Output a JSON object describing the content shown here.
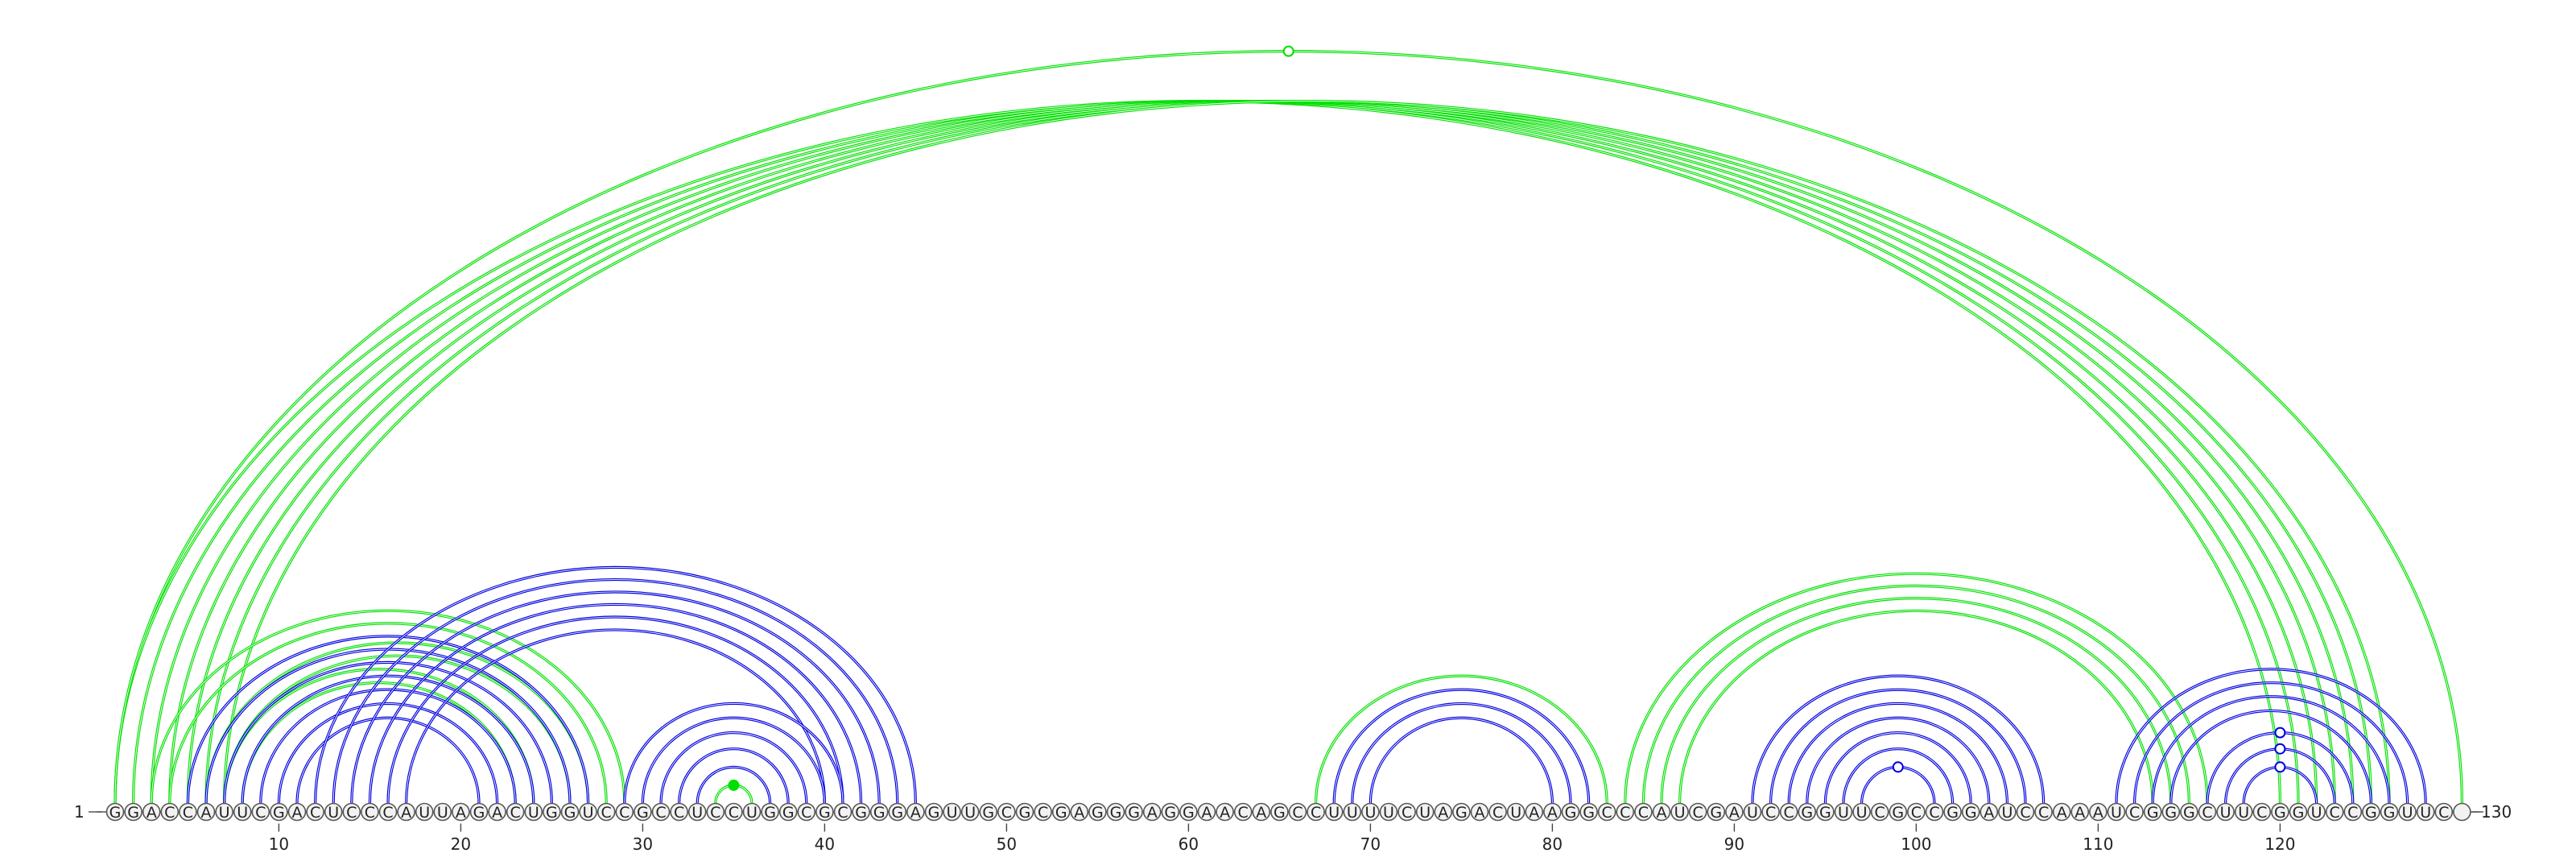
{
  "sequence": "GGACCAUUCGACUCCCAUUAGACUGGUCCGCCUCCUGGCGCGGGAGUUGCGCGAGGGAGGAACAGCCUUUUCUAGACUAAGGCCCAUCGAUCCGGUUCGCCGGAUCCAAAUCGGGCUUCGGUCCGGUUC",
  "start_label": "1",
  "end_label": "130",
  "ticks": [
    "10",
    "20",
    "30",
    "40",
    "50",
    "60",
    "70",
    "80",
    "90",
    "100",
    "110",
    "120"
  ],
  "colors": {
    "structure_a": "#00e000",
    "structure_b": "#0000dd",
    "backbone": "#555555"
  },
  "chart_data": {
    "type": "arc-diagram",
    "length": 130,
    "series": [
      {
        "color": "green",
        "pairs": [
          [
            1,
            120
          ],
          [
            2,
            121
          ],
          [
            3,
            122
          ],
          [
            4,
            123
          ],
          [
            5,
            124
          ],
          [
            6,
            125
          ],
          [
            7,
            126
          ],
          [
            1,
            130
          ],
          [
            3,
            29
          ],
          [
            4,
            28
          ],
          [
            6,
            27
          ],
          [
            7,
            26
          ],
          [
            7,
            24
          ],
          [
            8,
            23
          ],
          [
            34,
            36
          ],
          [
            67,
            83
          ],
          [
            84,
            116
          ],
          [
            85,
            115
          ],
          [
            86,
            114
          ],
          [
            87,
            113
          ]
        ],
        "open_markers": [
          65
        ]
      },
      {
        "color": "blue",
        "pairs": [
          [
            5,
            27
          ],
          [
            6,
            26
          ],
          [
            7,
            25
          ],
          [
            8,
            24
          ],
          [
            9,
            23
          ],
          [
            10,
            22
          ],
          [
            11,
            21
          ],
          [
            12,
            45
          ],
          [
            13,
            44
          ],
          [
            14,
            43
          ],
          [
            15,
            42
          ],
          [
            16,
            41
          ],
          [
            17,
            40
          ],
          [
            29,
            41
          ],
          [
            30,
            40
          ],
          [
            31,
            39
          ],
          [
            32,
            38
          ],
          [
            33,
            37
          ],
          [
            68,
            82
          ],
          [
            69,
            81
          ],
          [
            70,
            80
          ],
          [
            91,
            107
          ],
          [
            92,
            106
          ],
          [
            93,
            105
          ],
          [
            94,
            104
          ],
          [
            95,
            103
          ],
          [
            96,
            102
          ],
          [
            97,
            101
          ],
          [
            111,
            128
          ],
          [
            112,
            127
          ],
          [
            113,
            126
          ],
          [
            114,
            125
          ],
          [
            116,
            124
          ],
          [
            117,
            123
          ],
          [
            118,
            122
          ]
        ],
        "filled_markers": [],
        "open_markers": [
          99,
          120
        ]
      }
    ]
  }
}
